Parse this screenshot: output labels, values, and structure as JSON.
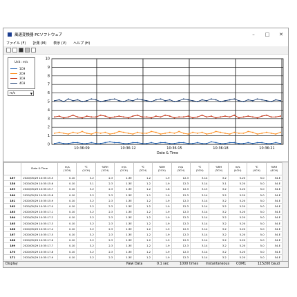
{
  "window": {
    "title": "風速変換器 PCソフトウェア"
  },
  "menu": [
    "ファイル (F)",
    "計測 (M)",
    "表示 (V)",
    "ヘルプ (H)"
  ],
  "toolbar_icons": [
    "new-icon",
    "save-icon",
    "record-icon",
    "stop-icon",
    "print-icon"
  ],
  "legend": {
    "title": "Unit : m/s",
    "items": [
      {
        "label": "1CH",
        "color": "#1f5fb0"
      },
      {
        "label": "2CH",
        "color": "#ff8c1a"
      },
      {
        "label": "3CH",
        "color": "#c02a0c"
      },
      {
        "label": "4CH",
        "color": "#1d3f73"
      }
    ],
    "unit_select": "m/s"
  },
  "chart_data": {
    "type": "line",
    "xlabel": "Date & Time",
    "x_ticks": [
      "10:36:09",
      "10:36:12",
      "10:36:15",
      "10:36:18",
      "10:36:21"
    ],
    "y_ticks": [
      "0",
      "1",
      "2",
      "3",
      "4",
      "5",
      "6",
      "7",
      "8",
      "9",
      "10"
    ],
    "ylim": [
      0,
      10
    ],
    "grid": true,
    "series": [
      {
        "values": [
          0.1,
          0.2,
          0.1,
          0.1,
          0.2,
          0.2,
          0.1,
          0.1,
          0.2,
          0.1,
          0.1,
          0.2,
          0.3,
          0.2,
          0.2,
          0.1,
          0.1,
          0.2,
          0.2,
          0.1,
          0.1,
          0.2,
          0.1,
          0.2,
          0.2,
          0.1,
          0.1,
          0.2,
          0.2,
          0.1,
          0.1,
          0.2,
          0.1,
          0.1,
          0.3,
          0.2,
          0.1,
          0.1,
          0.2,
          0.2,
          0.1,
          0.1,
          0.2,
          0.1,
          0.2,
          0.2,
          0.1,
          0.1,
          0.2,
          0.1
        ]
      },
      {
        "values": [
          1.3,
          1.4,
          1.3,
          1.2,
          1.4,
          1.3,
          1.5,
          1.3,
          1.2,
          1.4,
          1.3,
          1.4,
          1.2,
          1.3,
          1.5,
          1.4,
          1.3,
          1.2,
          1.4,
          1.3,
          1.3,
          1.5,
          1.4,
          1.2,
          1.3,
          1.4,
          1.3,
          1.5,
          1.3,
          1.2,
          1.4,
          1.3,
          1.4,
          1.2,
          1.3,
          1.5,
          1.4,
          1.3,
          1.2,
          1.4,
          1.3,
          1.3,
          1.5,
          1.4,
          1.2,
          1.3,
          1.4,
          1.3,
          1.2,
          1.4
        ]
      },
      {
        "values": [
          3.2,
          3.3,
          3.1,
          3.2,
          3.4,
          3.2,
          3.1,
          3.3,
          3.2,
          3.2,
          3.4,
          3.3,
          3.1,
          3.2,
          3.3,
          3.2,
          3.1,
          3.3,
          3.4,
          3.2,
          3.2,
          3.1,
          3.3,
          3.2,
          3.4,
          3.3,
          3.1,
          3.2,
          3.2,
          3.3,
          3.1,
          3.2,
          3.4,
          3.2,
          3.3,
          3.1,
          3.2,
          3.3,
          3.2,
          3.4,
          3.1,
          3.2,
          3.3,
          3.2,
          3.1,
          3.3,
          3.4,
          3.2,
          3.2,
          3.3
        ]
      },
      {
        "values": [
          5.1,
          5.2,
          5.0,
          5.3,
          5.1,
          5.2,
          5.0,
          5.1,
          5.3,
          5.2,
          5.0,
          5.1,
          5.2,
          5.3,
          5.1,
          5.0,
          5.2,
          5.1,
          5.3,
          5.2,
          5.1,
          5.0,
          5.2,
          5.3,
          5.1,
          5.2,
          5.0,
          5.1,
          5.3,
          5.2,
          5.1,
          5.0,
          5.2,
          5.1,
          5.3,
          5.2,
          5.0,
          5.1,
          5.2,
          5.3,
          5.1,
          5.0,
          5.2,
          5.1,
          5.3,
          5.2,
          5.1,
          5.0,
          5.2,
          5.1
        ]
      }
    ]
  },
  "table": {
    "headers": [
      "",
      "Date & Time",
      "m/s\n(1CH)",
      "℃\n(1CH)",
      "%RH\n(1CH)",
      "m/s\n(2CH)",
      "℃\n(2CH)",
      "%RH\n(2CH)",
      "m/s\n(3CH)",
      "℃\n(3CH)",
      "%RH\n(3CH)",
      "m/s\n(4CH)",
      "℃\n(4CH)",
      "%RH\n(4CH)"
    ],
    "rows": [
      [
        "157",
        "2020/05/29 10:35:15.5",
        "0.10",
        "3.2",
        "2.3",
        "1.3E",
        "1.2",
        "1.9",
        "12.3",
        "3.14",
        "3.2",
        "5.20",
        "5.0",
        "54.E"
      ],
      [
        "158",
        "2020/05/29 10:35:15.6",
        "0.10",
        "3.1",
        "2.3",
        "1.3E",
        "1.2",
        "1.9",
        "12.3",
        "3.14",
        "3.1",
        "5.20",
        "5.0",
        "54.E"
      ],
      [
        "159",
        "2020/05/29 10:35:15.7",
        "0.10",
        "3.2",
        "2.3",
        "1.3E",
        "1.2",
        "1.8",
        "12.3",
        "3.13",
        "3.2",
        "5.20",
        "5.0",
        "54.E"
      ],
      [
        "160",
        "2020/05/29 10:35:15.8",
        "0.10",
        "3.2",
        "2.3",
        "1.3E",
        "1.1",
        "1.9",
        "12.3",
        "3.14",
        "3.2",
        "5.20",
        "5.0",
        "54.E"
      ],
      [
        "161",
        "2020/05/29 10:35:15.9",
        "0.10",
        "3.2",
        "2.3",
        "1.3E",
        "1.2",
        "1.9",
        "12.3",
        "3.14",
        "3.2",
        "5.20",
        "5.0",
        "54.E"
      ],
      [
        "162",
        "2020/05/29 10:35:17.0",
        "0.10",
        "3.2",
        "2.3",
        "1.3E",
        "1.2",
        "1.9",
        "12.3",
        "3.14",
        "3.2",
        "5.20",
        "5.0",
        "54.E"
      ],
      [
        "163",
        "2020/05/29 10:35:17.1",
        "0.10",
        "3.2",
        "2.3",
        "1.3E",
        "1.2",
        "1.9",
        "12.3",
        "3.14",
        "3.2",
        "5.20",
        "5.0",
        "54.E"
      ],
      [
        "164",
        "2020/05/29 10:35:17.2",
        "0.10",
        "3.2",
        "2.3",
        "1.3E",
        "1.2",
        "1.9",
        "12.3",
        "3.14",
        "3.2",
        "5.20",
        "5.0",
        "54.E"
      ],
      [
        "165",
        "2020/05/29 10:35:17.3",
        "0.10",
        "3.2",
        "2.3",
        "1.3E",
        "1.2",
        "1.9",
        "12.3",
        "3.14",
        "3.2",
        "5.20",
        "5.0",
        "54.E"
      ],
      [
        "166",
        "2020/05/29 10:35:17.4",
        "0.10",
        "3.2",
        "2.3",
        "1.3E",
        "1.2",
        "1.9",
        "12.3",
        "3.14",
        "3.2",
        "5.20",
        "5.0",
        "54.E"
      ],
      [
        "167",
        "2020/05/29 10:35:17.5",
        "0.10",
        "3.2",
        "2.3",
        "1.3E",
        "1.2",
        "1.9",
        "12.3",
        "3.14",
        "3.2",
        "5.20",
        "5.0",
        "54.E"
      ],
      [
        "168",
        "2020/05/29 10:35:17.6",
        "0.10",
        "3.2",
        "2.3",
        "1.3E",
        "1.2",
        "1.9",
        "12.3",
        "3.14",
        "3.2",
        "5.20",
        "5.0",
        "54.E"
      ],
      [
        "169",
        "2020/05/29 10:35:17.7",
        "0.10",
        "3.2",
        "2.3",
        "1.3E",
        "1.2",
        "1.9",
        "12.3",
        "3.14",
        "3.2",
        "5.20",
        "5.0",
        "54.E"
      ],
      [
        "170",
        "2020/05/29 10:35:17.8",
        "0.10",
        "3.2",
        "2.3",
        "1.3E",
        "1.2",
        "1.9",
        "12.3",
        "3.14",
        "3.2",
        "5.20",
        "5.0",
        "54.E"
      ],
      [
        "171",
        "2020/05/29 10:35:17.9",
        "0.10",
        "3.2",
        "2.3",
        "1.3E",
        "1.2",
        "1.9",
        "12.3",
        "3.14",
        "3.2",
        "5.20",
        "5.0",
        "54.E"
      ]
    ]
  },
  "status": {
    "mode": "Display",
    "data_state": "New Data",
    "interval": "0.1 sec",
    "count": "1000 times",
    "trigger": "Instantaneous",
    "port": "COM1",
    "baud": "115200 baud"
  }
}
